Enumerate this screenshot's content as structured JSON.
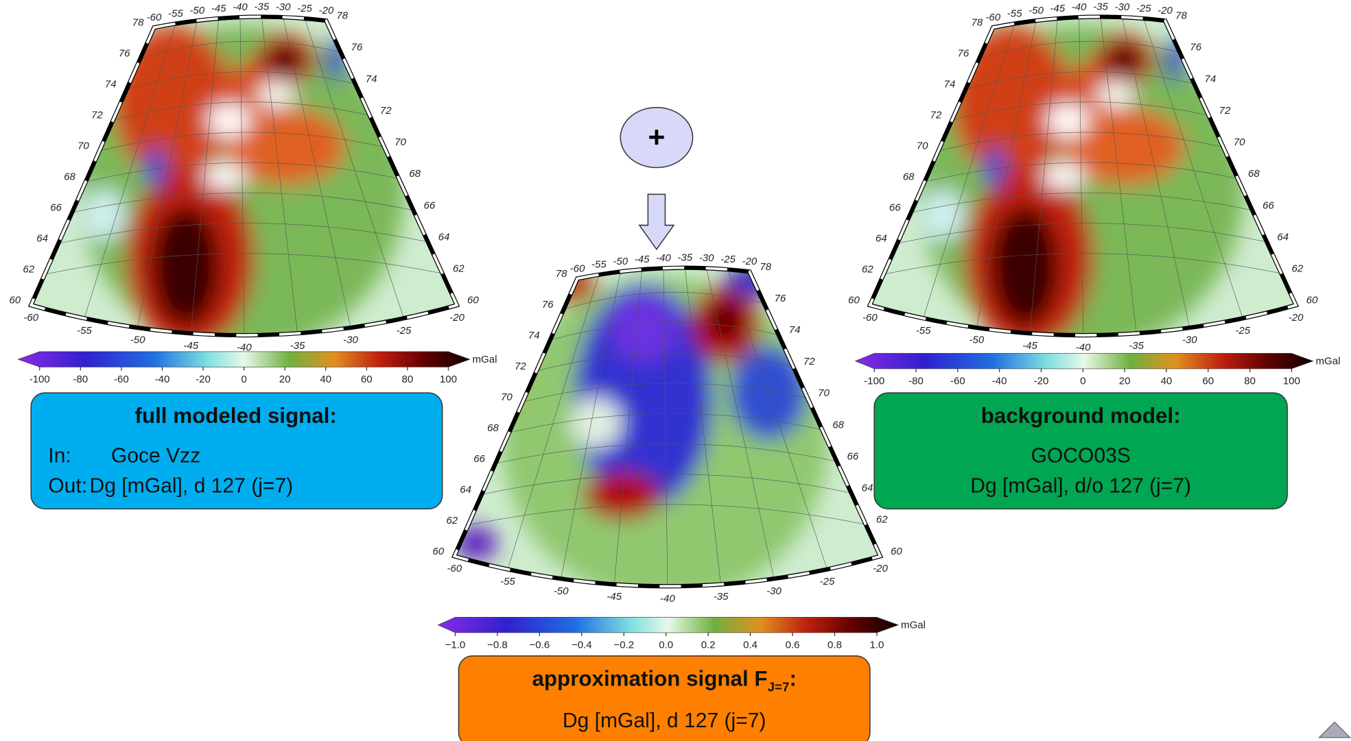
{
  "maps": [
    {
      "lon_top": [
        "-60",
        "-55",
        "-50",
        "-45",
        "-40",
        "-35",
        "-30",
        "-25",
        "-20"
      ],
      "lat_left": [
        "78",
        "76",
        "74",
        "72",
        "70",
        "68",
        "66",
        "64",
        "62",
        "60"
      ],
      "lat_right": [
        "78",
        "76",
        "74",
        "72",
        "70",
        "68",
        "66",
        "64",
        "62",
        "60"
      ],
      "lon_bottom": [
        "-60",
        "-55",
        "-50",
        "-45",
        "-40",
        "-35",
        "-30",
        "-25",
        "-20"
      ],
      "colorbar": {
        "unit": "mGal",
        "lim": [
          -100,
          100
        ],
        "ticks": [
          -100,
          -80,
          -60,
          -40,
          -20,
          0,
          20,
          40,
          60,
          80,
          100
        ]
      }
    },
    {
      "lon_top": [
        "-60",
        "-55",
        "-50",
        "-45",
        "-40",
        "-35",
        "-30",
        "-25",
        "-20"
      ],
      "lat_left": [
        "78",
        "76",
        "74",
        "72",
        "70",
        "68",
        "66",
        "64",
        "62",
        "60"
      ],
      "lat_right": [
        "78",
        "76",
        "74",
        "72",
        "70",
        "68",
        "66",
        "64",
        "62",
        "60"
      ],
      "lon_bottom": [
        "-60",
        "-55",
        "-50",
        "-45",
        "-40",
        "-35",
        "-30",
        "-25",
        "-20"
      ],
      "colorbar": {
        "unit": "mGal",
        "lim": [
          -1,
          1
        ],
        "ticks": [
          {
            "value": -1,
            "label": "−1.0"
          },
          {
            "value": -0.8,
            "label": "−0.8"
          },
          {
            "value": -0.6,
            "label": "−0.6"
          },
          {
            "value": -0.4,
            "label": "−0.4"
          },
          {
            "value": -0.2,
            "label": "−0.2"
          },
          {
            "value": 0,
            "label": "0.0"
          },
          {
            "value": 0.2,
            "label": "0.2"
          },
          {
            "value": 0.4,
            "label": "0.4"
          },
          {
            "value": 0.6,
            "label": "0.6"
          },
          {
            "value": 0.8,
            "label": "0.8"
          },
          {
            "value": 1,
            "label": "1.0"
          }
        ]
      }
    },
    {
      "lon_top": [
        "-60",
        "-55",
        "-50",
        "-45",
        "-40",
        "-35",
        "-30",
        "-25",
        "-20"
      ],
      "lat_left": [
        "78",
        "76",
        "74",
        "72",
        "70",
        "68",
        "66",
        "64",
        "62",
        "60"
      ],
      "lat_right": [
        "78",
        "76",
        "74",
        "72",
        "70",
        "68",
        "66",
        "64",
        "62",
        "60"
      ],
      "lon_bottom": [
        "-60",
        "-55",
        "-50",
        "-45",
        "-40",
        "-35",
        "-30",
        "-25",
        "-20"
      ],
      "colorbar": {
        "unit": "mGal",
        "lim": [
          -100,
          100
        ],
        "ticks": [
          -100,
          -80,
          -60,
          -40,
          -20,
          0,
          20,
          40,
          60,
          80,
          100
        ]
      }
    }
  ],
  "boxes": {
    "full": {
      "title": "full modeled signal:",
      "in_label": "In:",
      "in_value": "Goce Vzz",
      "out_label": "Out:",
      "out_value": "Dg [mGal], d 127 (j=7)"
    },
    "background": {
      "title": "background model:",
      "line1": "GOCO03S",
      "line2": "Dg [mGal], d/o 127 (j=7)"
    },
    "approximation": {
      "title": "approximation signal F",
      "subscript": "J=7",
      "suffix": ":",
      "line1": "Dg [mGal], d 127 (j=7)"
    }
  },
  "operator": "+"
}
